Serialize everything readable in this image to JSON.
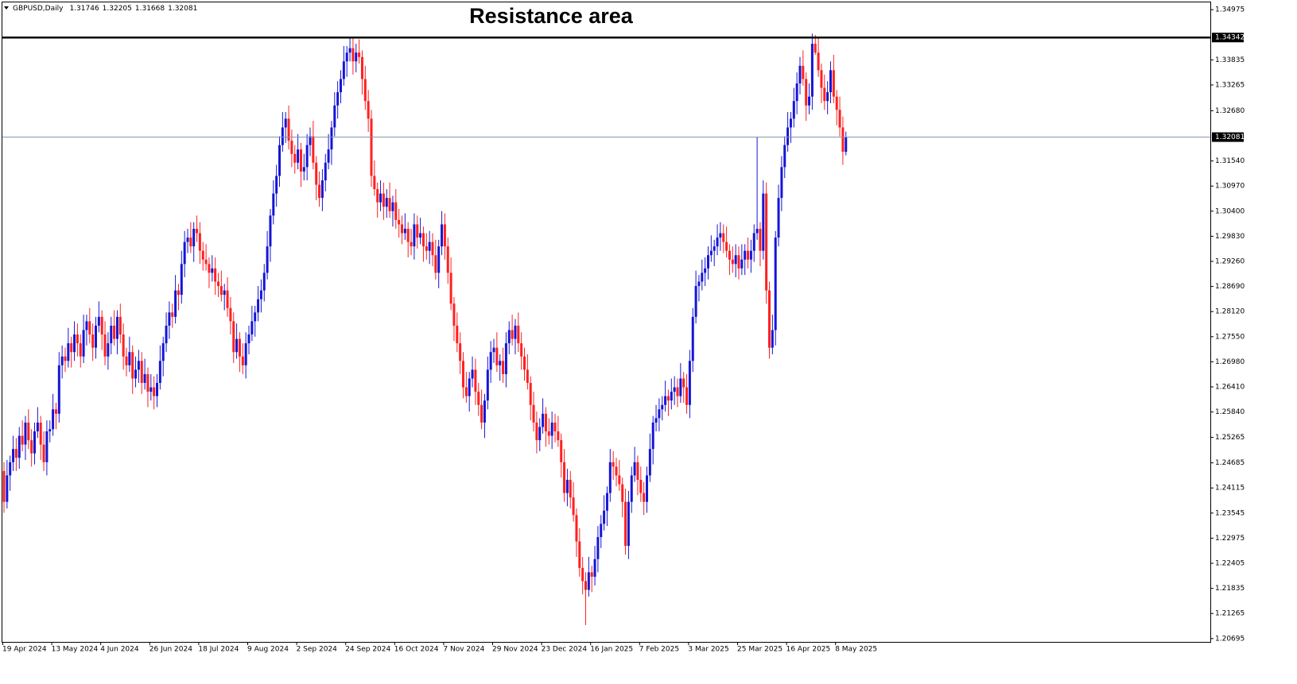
{
  "chart_data": {
    "type": "candlestick",
    "symbol": "GBPUSD,Daily",
    "title": "Resistance area",
    "up_color": "#1515d6",
    "down_color": "#ff2020",
    "resistance": 1.34342,
    "resistance_color": "#000000",
    "price_line_color": "#7f93a8",
    "ylim": [
      1.2062,
      1.3514
    ],
    "yticks": [
      1.34975,
      1.33835,
      1.33265,
      {
        "value": 1.3268,
        "label": "1.32680"
      },
      {
        "value": 1.3154,
        "label": "1.31540"
      },
      {
        "value": 1.3097,
        "label": "1.30970"
      },
      {
        "value": 1.304,
        "label": "1.30400"
      },
      {
        "value": 1.2983,
        "label": "1.29830"
      },
      {
        "value": 1.2926,
        "label": "1.29260"
      },
      {
        "value": 1.2869,
        "label": "1.28690"
      },
      {
        "value": 1.2812,
        "label": "1.28120"
      },
      {
        "value": 1.2755,
        "label": "1.27550"
      },
      {
        "value": 1.2698,
        "label": "1.26980"
      },
      {
        "value": 1.2641,
        "label": "1.26410"
      },
      {
        "value": 1.2584,
        "label": "1.25840"
      },
      1.25265,
      1.24685,
      1.24115,
      1.23545,
      1.22975,
      1.22405,
      1.21835,
      1.21265,
      1.20695
    ],
    "categories": [
      "19 Apr 2024",
      null,
      null,
      null,
      null,
      null,
      null,
      null,
      null,
      null,
      null,
      null,
      null,
      null,
      null,
      null,
      "13 May 2024",
      null,
      null,
      null,
      null,
      null,
      null,
      null,
      null,
      null,
      null,
      null,
      null,
      null,
      null,
      null,
      "4 Jun 2024",
      null,
      null,
      null,
      null,
      null,
      null,
      null,
      null,
      null,
      null,
      null,
      null,
      null,
      null,
      null,
      "26 Jun 2024",
      null,
      null,
      null,
      null,
      null,
      null,
      null,
      null,
      null,
      null,
      null,
      null,
      null,
      null,
      null,
      "18 Jul 2024",
      null,
      null,
      null,
      null,
      null,
      null,
      null,
      null,
      null,
      null,
      null,
      null,
      null,
      null,
      null,
      "9 Aug 2024",
      null,
      null,
      null,
      null,
      null,
      null,
      null,
      null,
      null,
      null,
      null,
      null,
      null,
      null,
      null,
      "2 Sep 2024",
      null,
      null,
      null,
      null,
      null,
      null,
      null,
      null,
      null,
      null,
      null,
      null,
      null,
      null,
      null,
      "24 Sep 2024",
      null,
      null,
      null,
      null,
      null,
      null,
      null,
      null,
      null,
      null,
      null,
      null,
      null,
      null,
      null,
      "16 Oct 2024",
      null,
      null,
      null,
      null,
      null,
      null,
      null,
      null,
      null,
      null,
      null,
      null,
      null,
      null,
      null,
      "7 Nov 2024",
      null,
      null,
      null,
      null,
      null,
      null,
      null,
      null,
      null,
      null,
      null,
      null,
      null,
      null,
      null,
      "29 Nov 2024",
      null,
      null,
      null,
      null,
      null,
      null,
      null,
      null,
      null,
      null,
      null,
      null,
      null,
      null,
      null,
      "23 Dec 2024",
      null,
      null,
      null,
      null,
      null,
      null,
      null,
      null,
      null,
      null,
      null,
      null,
      null,
      null,
      null,
      "16 Jan 2025",
      null,
      null,
      null,
      null,
      null,
      null,
      null,
      null,
      null,
      null,
      null,
      null,
      null,
      null,
      null,
      "7 Feb 2025",
      null,
      null,
      null,
      null,
      null,
      null,
      null,
      null,
      null,
      null,
      null,
      null,
      null,
      null,
      null,
      "3 Mar 2025",
      null,
      null,
      null,
      null,
      null,
      null,
      null,
      null,
      null,
      null,
      null,
      null,
      null,
      null,
      null,
      "25 Mar 2025",
      null,
      null,
      null,
      null,
      null,
      null,
      null,
      null,
      null,
      null,
      null,
      null,
      null,
      null,
      null,
      "16 Apr 2025",
      null,
      null,
      null,
      null,
      null,
      null,
      null,
      null,
      null,
      null,
      null,
      null,
      null,
      null,
      null,
      "8 May 2025",
      null,
      null,
      null
    ],
    "open": [
      1.245,
      1.238,
      1.244,
      1.247,
      1.25,
      1.248,
      1.253,
      1.251,
      1.256,
      1.252,
      1.249,
      1.254,
      1.256,
      1.251,
      1.247,
      1.254,
      1.2545,
      1.259,
      1.258,
      1.269,
      1.271,
      1.27,
      1.274,
      1.272,
      1.276,
      1.274,
      1.271,
      1.277,
      1.279,
      1.276,
      1.273,
      1.278,
      1.28,
      1.276,
      1.271,
      1.274,
      1.278,
      1.275,
      1.28,
      1.276,
      1.271,
      1.269,
      1.272,
      1.266,
      1.268,
      1.27,
      1.265,
      1.267,
      1.263,
      1.264,
      1.262,
      1.265,
      1.27,
      1.274,
      1.278,
      1.281,
      1.28,
      1.286,
      1.285,
      1.292,
      1.297,
      1.298,
      1.296,
      1.3,
      1.299,
      1.295,
      1.293,
      1.292,
      1.29,
      1.291,
      1.288,
      1.287,
      1.285,
      1.286,
      1.282,
      1.279,
      1.272,
      1.275,
      1.271,
      1.269,
      1.274,
      1.276,
      1.279,
      1.281,
      1.284,
      1.286,
      1.29,
      1.296,
      1.303,
      1.308,
      1.312,
      1.319,
      1.323,
      1.325,
      1.32,
      1.317,
      1.315,
      1.318,
      1.313,
      1.314,
      1.319,
      1.321,
      1.315,
      1.31,
      1.307,
      1.311,
      1.315,
      1.318,
      1.323,
      1.328,
      1.331,
      1.334,
      1.338,
      1.34,
      1.341,
      1.338,
      1.34,
      1.339,
      1.334,
      1.329,
      1.325,
      1.312,
      1.309,
      1.306,
      1.308,
      1.305,
      1.307,
      1.304,
      1.306,
      1.302,
      1.301,
      1.299,
      1.3,
      1.297,
      1.296,
      1.301,
      1.298,
      1.299,
      1.296,
      1.295,
      1.297,
      1.294,
      1.29,
      1.296,
      1.301,
      1.296,
      1.29,
      1.283,
      1.278,
      1.274,
      1.27,
      1.264,
      1.262,
      1.266,
      1.268,
      1.263,
      1.26,
      1.256,
      1.261,
      1.268,
      1.272,
      1.273,
      1.269,
      1.27,
      1.267,
      1.274,
      1.277,
      1.275,
      1.278,
      1.274,
      1.271,
      1.268,
      1.265,
      1.26,
      1.256,
      1.252,
      1.255,
      1.258,
      1.254,
      1.253,
      1.256,
      1.254,
      1.252,
      1.247,
      1.24,
      1.243,
      1.239,
      1.235,
      1.229,
      1.223,
      1.22,
      1.218,
      1.222,
      1.221,
      1.225,
      1.23,
      1.233,
      1.236,
      1.24,
      1.247,
      1.246,
      1.244,
      1.242,
      1.238,
      1.228,
      1.238,
      1.244,
      1.247,
      1.243,
      1.24,
      1.238,
      1.244,
      1.25,
      1.256,
      1.257,
      1.259,
      1.26,
      1.262,
      1.261,
      1.263,
      1.264,
      1.262,
      1.266,
      1.264,
      1.26,
      1.27,
      1.28,
      1.287,
      1.288,
      1.29,
      1.291,
      1.294,
      1.295,
      1.296,
      1.298,
      1.299,
      1.297,
      1.295,
      1.293,
      1.292,
      1.294,
      1.291,
      1.293,
      1.295,
      1.293,
      1.295,
      1.299,
      1.3,
      1.295,
      1.308,
      1.286,
      1.273,
      1.277,
      1.298,
      1.307,
      1.314,
      1.319,
      1.323,
      1.325,
      1.329,
      1.333,
      1.337,
      1.334,
      1.328,
      1.33,
      1.342,
      1.34,
      1.336,
      1.332,
      1.329,
      1.331,
      1.336,
      1.33,
      1.327,
      1.323,
      1.31746
    ],
    "high": [
      1.247,
      1.2475,
      1.2485,
      1.253,
      1.2525,
      1.255,
      1.2565,
      1.2575,
      1.259,
      1.2545,
      1.256,
      1.2595,
      1.2575,
      1.254,
      1.2565,
      1.2565,
      1.2625,
      1.2605,
      1.272,
      1.2735,
      1.273,
      1.2775,
      1.2755,
      1.279,
      1.2785,
      1.276,
      1.2805,
      1.2805,
      1.282,
      1.2785,
      1.28,
      1.2835,
      1.2815,
      1.279,
      1.2765,
      1.28,
      1.2815,
      1.2815,
      1.283,
      1.2785,
      1.273,
      1.2755,
      1.2735,
      1.271,
      1.2725,
      1.272,
      1.2705,
      1.2685,
      1.267,
      1.2665,
      1.267,
      1.2735,
      1.2755,
      1.281,
      1.2835,
      1.283,
      1.2895,
      1.2875,
      1.295,
      1.2995,
      1.3,
      1.3015,
      1.3015,
      1.303,
      1.3015,
      1.297,
      1.2965,
      1.2935,
      1.294,
      1.2935,
      1.29,
      1.2905,
      1.2875,
      1.289,
      1.2845,
      1.281,
      1.2785,
      1.2765,
      1.274,
      1.2765,
      1.278,
      1.2825,
      1.2825,
      1.287,
      1.2885,
      1.292,
      1.2995,
      1.3045,
      1.311,
      1.3145,
      1.321,
      1.3265,
      1.3265,
      1.328,
      1.3225,
      1.319,
      1.3215,
      1.3195,
      1.317,
      1.3215,
      1.323,
      1.3245,
      1.3165,
      1.313,
      1.3135,
      1.317,
      1.3215,
      1.3245,
      1.331,
      1.3335,
      1.336,
      1.3415,
      1.3415,
      1.3434,
      1.3432,
      1.342,
      1.343,
      1.3405,
      1.337,
      1.3315,
      1.327,
      1.3155,
      1.3105,
      1.311,
      1.3105,
      1.309,
      1.3105,
      1.3075,
      1.309,
      1.3045,
      1.303,
      1.3035,
      1.3015,
      1.3,
      1.3035,
      1.303,
      1.3025,
      1.3005,
      1.299,
      1.2995,
      1.299,
      1.2975,
      1.2975,
      1.304,
      1.3035,
      1.298,
      1.2935,
      1.2845,
      1.281,
      1.2765,
      1.272,
      1.2675,
      1.2675,
      1.271,
      1.2705,
      1.265,
      1.2635,
      1.2625,
      1.271,
      1.2745,
      1.275,
      1.2765,
      1.2715,
      1.273,
      1.2765,
      1.279,
      1.2805,
      1.2795,
      1.281,
      1.2765,
      1.273,
      1.2715,
      1.2665,
      1.263,
      1.2585,
      1.257,
      1.2615,
      1.2595,
      1.257,
      1.2585,
      1.258,
      1.2575,
      1.2535,
      1.25,
      1.2455,
      1.245,
      1.2425,
      1.2365,
      1.232,
      1.2255,
      1.222,
      1.2255,
      1.2235,
      1.228,
      1.2325,
      1.235,
      1.2395,
      1.2415,
      1.25,
      1.2495,
      1.248,
      1.2475,
      1.2435,
      1.241,
      1.2405,
      1.246,
      1.2505,
      1.2485,
      1.246,
      1.2425,
      1.246,
      1.2535,
      1.2575,
      1.26,
      1.2615,
      1.262,
      1.2655,
      1.2635,
      1.266,
      1.2665,
      1.266,
      1.2695,
      1.2675,
      1.267,
      1.2725,
      1.282,
      1.2905,
      1.2895,
      1.293,
      1.2935,
      1.296,
      1.2985,
      1.2975,
      1.301,
      1.3015,
      1.301,
      1.3005,
      1.2965,
      1.296,
      1.2965,
      1.296,
      1.2965,
      1.2965,
      1.298,
      1.2975,
      1.301,
      1.3209,
      1.3015,
      1.311,
      1.3105,
      1.288,
      1.2805,
      1.2995,
      1.31,
      1.3165,
      1.321,
      1.3265,
      1.3265,
      1.332,
      1.3355,
      1.339,
      1.3405,
      1.3355,
      1.333,
      1.3443,
      1.344,
      1.3435,
      1.3375,
      1.335,
      1.3335,
      1.338,
      1.3395,
      1.3315,
      1.33,
      1.3255,
      1.32205
    ],
    "low": [
      1.2355,
      1.2365,
      1.2405,
      1.245,
      1.245,
      1.2455,
      1.2495,
      1.2475,
      1.25,
      1.246,
      1.2465,
      1.2525,
      1.2475,
      1.245,
      1.244,
      1.2515,
      1.253,
      1.2545,
      1.256,
      1.266,
      1.2675,
      1.2685,
      1.2685,
      1.27,
      1.271,
      1.2685,
      1.2695,
      1.2735,
      1.274,
      1.27,
      1.2705,
      1.2765,
      1.2725,
      1.269,
      1.268,
      1.2715,
      1.2735,
      1.2715,
      1.274,
      1.268,
      1.2665,
      1.2675,
      1.2625,
      1.264,
      1.265,
      1.2625,
      1.2635,
      1.2595,
      1.261,
      1.259,
      1.2595,
      1.2635,
      1.2665,
      1.272,
      1.275,
      1.2775,
      1.2785,
      1.2815,
      1.283,
      1.289,
      1.2945,
      1.2945,
      1.2925,
      1.297,
      1.292,
      1.2905,
      1.2905,
      1.2865,
      1.288,
      1.285,
      1.2845,
      1.2835,
      1.2815,
      1.28,
      1.276,
      1.2695,
      1.2705,
      1.2675,
      1.267,
      1.266,
      1.2715,
      1.2745,
      1.2755,
      1.279,
      1.281,
      1.2835,
      1.2885,
      1.2925,
      1.301,
      1.305,
      1.3095,
      1.3175,
      1.3195,
      1.318,
      1.314,
      1.3125,
      1.3135,
      1.3095,
      1.311,
      1.311,
      1.3165,
      1.3135,
      1.3065,
      1.305,
      1.304,
      1.3085,
      1.3135,
      1.3145,
      1.321,
      1.325,
      1.3285,
      1.3325,
      1.3345,
      1.338,
      1.335,
      1.3355,
      1.3375,
      1.3305,
      1.327,
      1.322,
      1.3095,
      1.3075,
      1.3025,
      1.304,
      1.302,
      1.3025,
      1.3025,
      1.3005,
      1.3,
      1.298,
      1.2965,
      1.2975,
      1.2935,
      1.294,
      1.293,
      1.2955,
      1.2965,
      1.2925,
      1.293,
      1.292,
      1.2915,
      1.2885,
      1.2865,
      1.294,
      1.293,
      1.2875,
      1.2815,
      1.2745,
      1.272,
      1.267,
      1.2615,
      1.2605,
      1.2585,
      1.264,
      1.26,
      1.2575,
      1.2545,
      1.2525,
      1.259,
      1.265,
      1.2695,
      1.2675,
      1.2655,
      1.265,
      1.264,
      1.2715,
      1.2735,
      1.2715,
      1.272,
      1.268,
      1.2655,
      1.2635,
      1.2565,
      1.254,
      1.249,
      1.2495,
      1.2535,
      1.2505,
      1.251,
      1.25,
      1.2515,
      1.2505,
      1.2435,
      1.238,
      1.237,
      1.2365,
      1.2335,
      1.2255,
      1.221,
      1.217,
      1.21,
      1.2165,
      1.2175,
      1.219,
      1.222,
      1.2275,
      1.2315,
      1.2325,
      1.238,
      1.243,
      1.2415,
      1.2405,
      1.2345,
      1.226,
      1.225,
      1.2355,
      1.2425,
      1.2395,
      1.238,
      1.235,
      1.2355,
      1.2425,
      1.2465,
      1.254,
      1.254,
      1.2565,
      1.2585,
      1.2575,
      1.259,
      1.26,
      1.2595,
      1.2605,
      1.2605,
      1.258,
      1.257,
      1.2675,
      1.2785,
      1.2835,
      1.286,
      1.287,
      1.2885,
      1.2925,
      1.2915,
      1.294,
      1.295,
      1.2945,
      1.2935,
      1.2895,
      1.29,
      1.289,
      1.2885,
      1.2895,
      1.2895,
      1.291,
      1.29,
      1.2925,
      1.2975,
      1.2915,
      1.293,
      1.283,
      1.2705,
      1.2715,
      1.2735,
      1.296,
      1.304,
      1.3115,
      1.3175,
      1.3195,
      1.323,
      1.326,
      1.3305,
      1.3325,
      1.3245,
      1.326,
      1.327,
      1.3395,
      1.3345,
      1.3285,
      1.327,
      1.326,
      1.3285,
      1.3285,
      1.3235,
      1.321,
      1.3145,
      1.31668
    ],
    "close": [
      1.238,
      1.244,
      1.247,
      1.25,
      1.248,
      1.253,
      1.251,
      1.256,
      1.252,
      1.249,
      1.254,
      1.256,
      1.251,
      1.247,
      1.254,
      1.2545,
      1.259,
      1.258,
      1.269,
      1.271,
      1.27,
      1.274,
      1.272,
      1.276,
      1.274,
      1.271,
      1.277,
      1.279,
      1.276,
      1.273,
      1.278,
      1.28,
      1.276,
      1.271,
      1.274,
      1.278,
      1.275,
      1.28,
      1.276,
      1.271,
      1.269,
      1.272,
      1.266,
      1.268,
      1.27,
      1.265,
      1.267,
      1.263,
      1.264,
      1.262,
      1.265,
      1.27,
      1.274,
      1.278,
      1.281,
      1.28,
      1.286,
      1.285,
      1.292,
      1.297,
      1.298,
      1.296,
      1.3,
      1.299,
      1.295,
      1.293,
      1.292,
      1.29,
      1.291,
      1.288,
      1.287,
      1.285,
      1.286,
      1.282,
      1.279,
      1.272,
      1.275,
      1.271,
      1.269,
      1.274,
      1.276,
      1.279,
      1.281,
      1.284,
      1.286,
      1.29,
      1.296,
      1.303,
      1.308,
      1.312,
      1.319,
      1.323,
      1.325,
      1.32,
      1.317,
      1.315,
      1.318,
      1.313,
      1.314,
      1.319,
      1.321,
      1.315,
      1.31,
      1.307,
      1.311,
      1.315,
      1.318,
      1.323,
      1.328,
      1.331,
      1.334,
      1.338,
      1.34,
      1.341,
      1.338,
      1.34,
      1.339,
      1.334,
      1.329,
      1.325,
      1.312,
      1.309,
      1.306,
      1.308,
      1.305,
      1.307,
      1.304,
      1.306,
      1.302,
      1.301,
      1.299,
      1.3,
      1.297,
      1.296,
      1.301,
      1.298,
      1.299,
      1.296,
      1.295,
      1.297,
      1.294,
      1.29,
      1.296,
      1.301,
      1.296,
      1.29,
      1.283,
      1.278,
      1.274,
      1.27,
      1.264,
      1.262,
      1.266,
      1.268,
      1.263,
      1.26,
      1.256,
      1.261,
      1.268,
      1.272,
      1.273,
      1.269,
      1.27,
      1.267,
      1.274,
      1.277,
      1.275,
      1.278,
      1.274,
      1.271,
      1.268,
      1.265,
      1.26,
      1.256,
      1.252,
      1.255,
      1.258,
      1.254,
      1.253,
      1.256,
      1.254,
      1.252,
      1.247,
      1.24,
      1.243,
      1.239,
      1.235,
      1.229,
      1.223,
      1.22,
      1.218,
      1.222,
      1.221,
      1.225,
      1.23,
      1.233,
      1.236,
      1.24,
      1.247,
      1.246,
      1.244,
      1.242,
      1.238,
      1.228,
      1.238,
      1.244,
      1.247,
      1.243,
      1.24,
      1.238,
      1.244,
      1.25,
      1.256,
      1.257,
      1.259,
      1.26,
      1.262,
      1.261,
      1.263,
      1.264,
      1.262,
      1.266,
      1.264,
      1.26,
      1.27,
      1.28,
      1.287,
      1.288,
      1.29,
      1.291,
      1.294,
      1.295,
      1.296,
      1.298,
      1.299,
      1.297,
      1.295,
      1.293,
      1.292,
      1.294,
      1.291,
      1.293,
      1.295,
      1.293,
      1.295,
      1.299,
      1.3,
      1.295,
      1.308,
      1.286,
      1.273,
      1.277,
      1.298,
      1.307,
      1.314,
      1.319,
      1.323,
      1.325,
      1.329,
      1.333,
      1.337,
      1.334,
      1.328,
      1.33,
      1.342,
      1.34,
      1.336,
      1.332,
      1.329,
      1.331,
      1.336,
      1.33,
      1.327,
      1.323,
      1.3175,
      1.32081
    ]
  }
}
